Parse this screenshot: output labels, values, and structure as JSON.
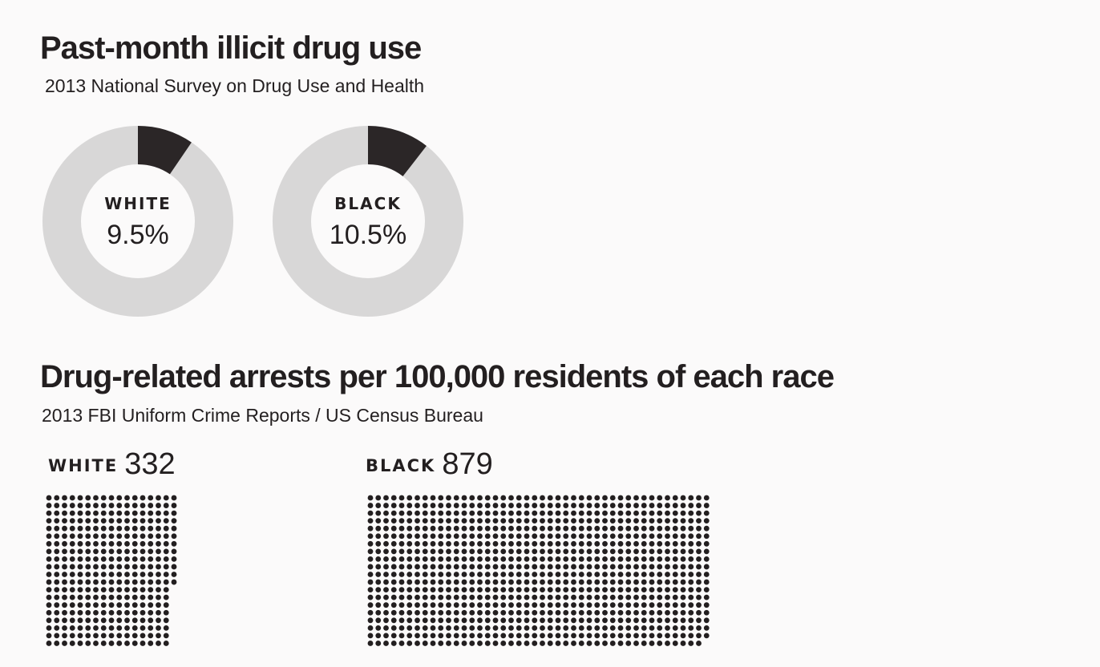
{
  "chart_data": [
    {
      "type": "pie",
      "title": "Past-month illicit drug use",
      "subtitle": "2013 National Survey on Drug Use and Health",
      "colors": {
        "highlight": "#2b2627",
        "track": "#d8d7d7"
      },
      "slices": [
        {
          "label": "WHITE",
          "value": 9.5,
          "display": "9.5%"
        },
        {
          "label": "BLACK",
          "value": 10.5,
          "display": "10.5%"
        }
      ]
    },
    {
      "type": "bar",
      "title": "Drug-related arrests per 100,000 residents of each race",
      "subtitle": "2013 FBI Uniform Crime Reports / US Census Bureau",
      "dot_color": "#231f20",
      "categories": [
        "WHITE",
        "BLACK"
      ],
      "values": [
        332,
        879
      ]
    }
  ]
}
